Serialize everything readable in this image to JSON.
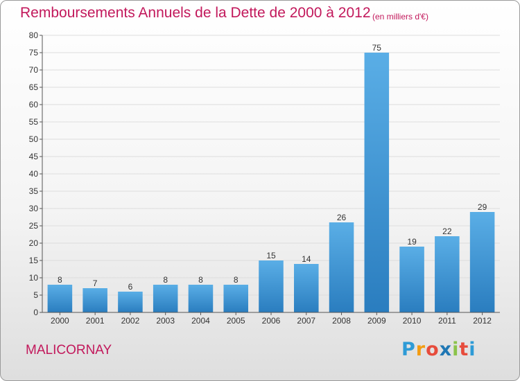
{
  "header": {
    "title": "Remboursements Annuels de la Dette de 2000 à 2012",
    "unit": "(en milliers d'€)"
  },
  "footer": {
    "commune": "MALICORNAY",
    "logo_letters": [
      "P",
      "r",
      "o",
      "x",
      "i",
      "t",
      "i"
    ],
    "logo_colors": [
      "#2e9bd6",
      "#f39c12",
      "#e74c3c",
      "#1f77b4",
      "#8bc34a",
      "#e74c3c",
      "#2e9bd6"
    ]
  },
  "colors": {
    "bar_light": "#5aaee6",
    "bar_dark": "#2a7dbf",
    "grid": "#dddddd",
    "axis": "#555555",
    "accent": "#c2185b"
  },
  "chart_data": {
    "type": "bar",
    "title": "Remboursements Annuels de la Dette de 2000 à 2012",
    "xlabel": "",
    "ylabel": "",
    "categories": [
      "2000",
      "2001",
      "2002",
      "2003",
      "2004",
      "2005",
      "2006",
      "2007",
      "2008",
      "2009",
      "2010",
      "2011",
      "2012"
    ],
    "values": [
      8,
      7,
      6,
      8,
      8,
      8,
      15,
      14,
      26,
      75,
      19,
      22,
      29
    ],
    "ylim": [
      0,
      80
    ],
    "yticks": [
      0,
      5,
      10,
      15,
      20,
      25,
      30,
      35,
      40,
      45,
      50,
      55,
      60,
      65,
      70,
      75,
      80
    ],
    "grid": true,
    "legend": "none"
  }
}
